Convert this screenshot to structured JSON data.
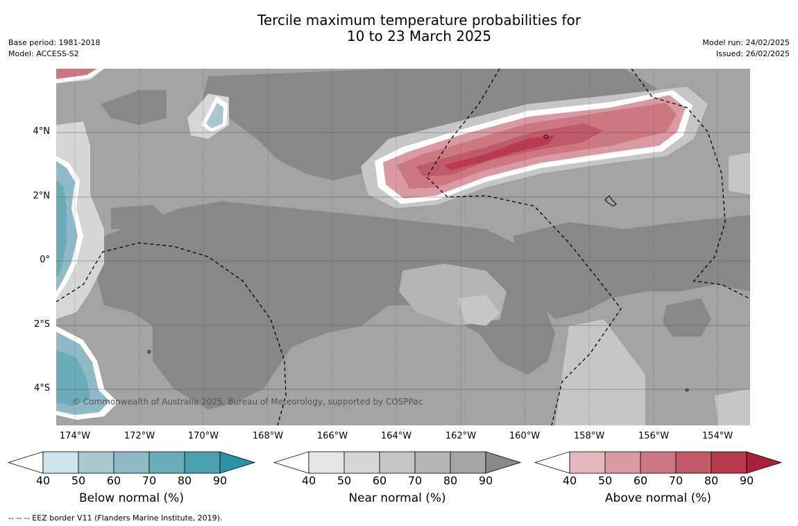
{
  "title_line1": "Tercile maximum temperature probabilities for",
  "title_line2": "10 to 23 March 2025",
  "base_period": "Base period: 1981-2018",
  "model": "Model: ACCESS-S2",
  "model_run": "Model run: 24/02/2025",
  "issued": "Issued: 26/02/2025",
  "lat_labels": [
    "4°N",
    "2°N",
    "0°",
    "2°S",
    "4°S"
  ],
  "lon_labels": [
    "174°W",
    "172°W",
    "170°W",
    "168°W",
    "166°W",
    "164°W",
    "162°W",
    "160°W",
    "158°W",
    "156°W",
    "154°W"
  ],
  "copyright": "© Commonwealth of Australia 2025, Bureau of Meteorology, supported by COSPPac",
  "colorbars": [
    {
      "title": "Below normal (%)",
      "ticks": [
        "40",
        "50",
        "60",
        "70",
        "80",
        "90"
      ],
      "colors": [
        "#ffffff",
        "#cce4ea",
        "#a9c9cf",
        "#8fb9c6",
        "#6aacb8",
        "#4aa0b1",
        "#2a91a6"
      ]
    },
    {
      "title": "Near normal (%)",
      "ticks": [
        "40",
        "50",
        "60",
        "70",
        "80",
        "90"
      ],
      "colors": [
        "#ffffff",
        "#e6e6e6",
        "#d6d6d6",
        "#c6c6c6",
        "#b4b4b4",
        "#a3a3a3",
        "#888888"
      ]
    },
    {
      "title": "Above normal (%)",
      "ticks": [
        "40",
        "50",
        "60",
        "70",
        "80",
        "90"
      ],
      "colors": [
        "#ffffff",
        "#e4b8be",
        "#d99aa3",
        "#cd7780",
        "#c05a67",
        "#b83a4c",
        "#a8203a"
      ]
    }
  ],
  "footnote": "-- -- -- EEZ border V11 (Flanders Marine Institute, 2019)."
}
